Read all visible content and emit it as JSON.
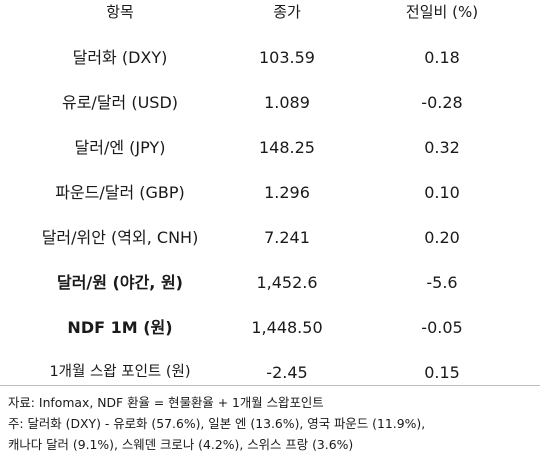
{
  "table": {
    "headers": [
      "항목",
      "종가",
      "전일비 (%)"
    ],
    "rows": [
      {
        "item": "달러화 (DXY)",
        "close": "103.59",
        "change": "0.18",
        "bold": false
      },
      {
        "item": "유로/달러 (USD)",
        "close": "1.089",
        "change": "-0.28",
        "bold": false
      },
      {
        "item": "달러/엔 (JPY)",
        "close": "148.25",
        "change": "0.32",
        "bold": false
      },
      {
        "item": "파운드/달러 (GBP)",
        "close": "1.296",
        "change": "0.10",
        "bold": false
      },
      {
        "item": "달러/위안 (역외, CNH)",
        "close": "7.241",
        "change": "0.20",
        "bold": false
      },
      {
        "item": "달러/원 (야간, 원)",
        "close": "1,452.6",
        "change": "-5.6",
        "bold": true
      },
      {
        "item": "NDF 1M (원)",
        "close": "1,448.50",
        "change": "-0.05",
        "bold": true
      },
      {
        "item": "1개월 스왑 포인트 (원)",
        "close": "-2.45",
        "change": "0.15",
        "bold": false
      }
    ]
  },
  "notes": {
    "source": "자료: Infomax, NDF 환율 = 현물환율 + 1개월 스왑포인트",
    "note1": "주: 달러화 (DXY) - 유로화 (57.6%), 일본 엔 (13.6%), 영국 파운드 (11.9%),",
    "note2": "캐나다 달러 (9.1%), 스웨덴 크로나 (4.2%), 스위스 프랑 (3.6%)"
  }
}
